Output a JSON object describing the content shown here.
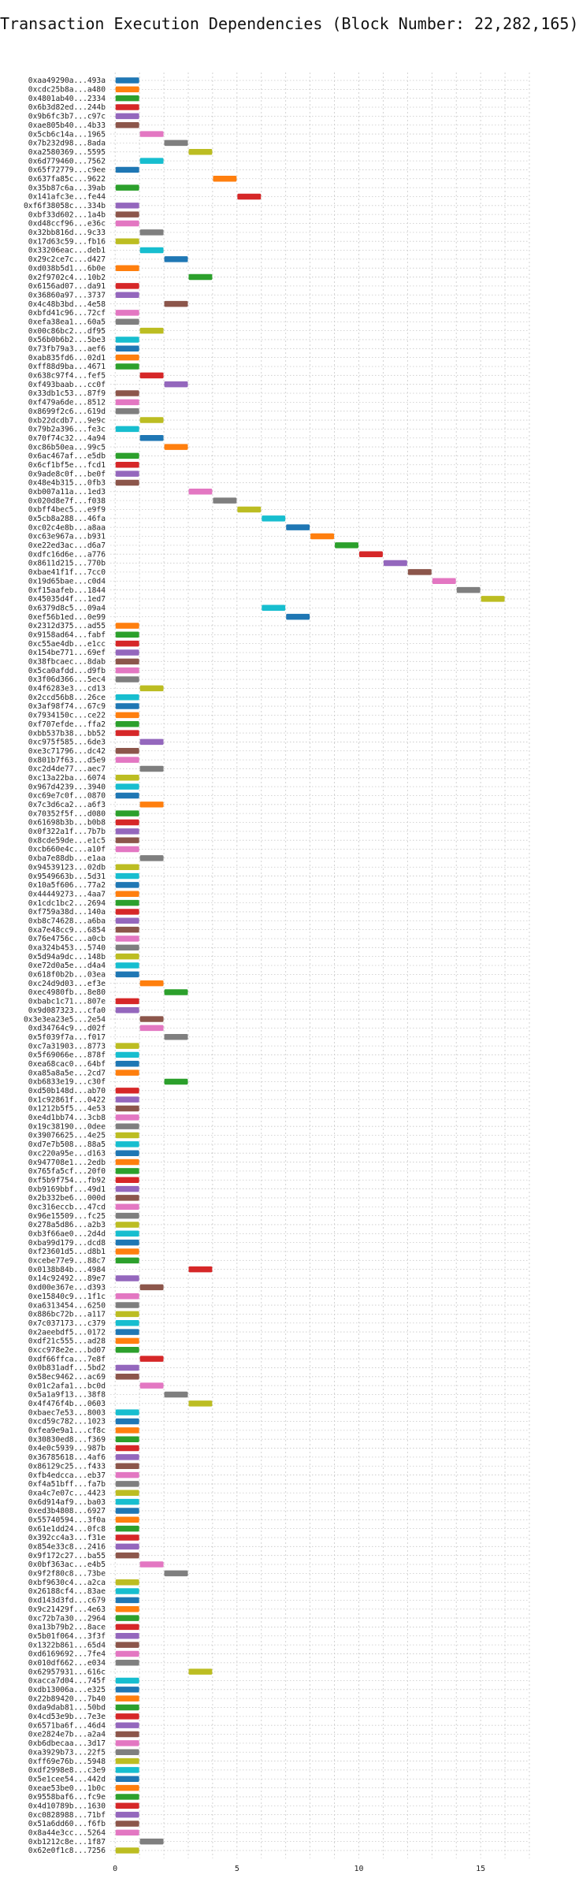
{
  "chart_data": {
    "type": "bar",
    "orientation": "horizontal-gantt",
    "title": "Transaction Execution Dependencies (Block Number: 22,282,165)",
    "xlabel": "",
    "ylabel": "",
    "xlim": [
      -0.2,
      17
    ],
    "xticks": [
      0,
      5,
      10,
      15
    ],
    "grid": true,
    "legend": "none",
    "palette": [
      "#1f77b4",
      "#ff7f0e",
      "#2ca02c",
      "#d62728",
      "#9467bd",
      "#8c564b",
      "#e377c2",
      "#7f7f7f",
      "#bcbd22",
      "#17becf"
    ],
    "transactions": [
      {
        "hash": "0xaa49290a...493a",
        "start": 0
      },
      {
        "hash": "0xcdc25b8a...a480",
        "start": 0
      },
      {
        "hash": "0x4801ab40...2334",
        "start": 0
      },
      {
        "hash": "0x6b3d82ed...244b",
        "start": 0
      },
      {
        "hash": "0x9b6fc3b7...c97c",
        "start": 0
      },
      {
        "hash": "0xae805b40...4b33",
        "start": 0
      },
      {
        "hash": "0x5cb6c14a...1965",
        "start": 1
      },
      {
        "hash": "0x7b232d98...8ada",
        "start": 2
      },
      {
        "hash": "0xa2580369...5595",
        "start": 3
      },
      {
        "hash": "0x6d779460...7562",
        "start": 1
      },
      {
        "hash": "0x65f72779...c9ee",
        "start": 0
      },
      {
        "hash": "0x637fa85c...9622",
        "start": 4
      },
      {
        "hash": "0x35b87c6a...39ab",
        "start": 0
      },
      {
        "hash": "0x141afc3e...fe44",
        "start": 5
      },
      {
        "hash": "0xf6f38058c...334b",
        "start": 0
      },
      {
        "hash": "0xbf33d602...1a4b",
        "start": 0
      },
      {
        "hash": "0xd48ccf96...e36c",
        "start": 0
      },
      {
        "hash": "0x32bb816d...9c33",
        "start": 1
      },
      {
        "hash": "0x17d63c59...fb16",
        "start": 0
      },
      {
        "hash": "0x33206eac...deb1",
        "start": 1
      },
      {
        "hash": "0x29c2ce7c...d427",
        "start": 2
      },
      {
        "hash": "0xd038b5d1...6b0e",
        "start": 0
      },
      {
        "hash": "0x2f9702c4...10b2",
        "start": 3
      },
      {
        "hash": "0x6156ad07...da91",
        "start": 0
      },
      {
        "hash": "0x36860a97...3737",
        "start": 0
      },
      {
        "hash": "0x4c48b3bd...4e58",
        "start": 2
      },
      {
        "hash": "0xbfd41c96...72cf",
        "start": 0
      },
      {
        "hash": "0xefa38ea1...60a5",
        "start": 0
      },
      {
        "hash": "0x00c86bc2...df95",
        "start": 1
      },
      {
        "hash": "0x56b0b6b2...5be3",
        "start": 0
      },
      {
        "hash": "0x73fb79a3...aef6",
        "start": 0
      },
      {
        "hash": "0xab835fd6...02d1",
        "start": 0
      },
      {
        "hash": "0xff88d9ba...4671",
        "start": 0
      },
      {
        "hash": "0x638c97f4...fef5",
        "start": 1
      },
      {
        "hash": "0xf493baab...cc0f",
        "start": 2
      },
      {
        "hash": "0x33db1c53...87f9",
        "start": 0
      },
      {
        "hash": "0xf479a6de...8512",
        "start": 0
      },
      {
        "hash": "0x8699f2c6...619d",
        "start": 0
      },
      {
        "hash": "0xb22dcdb7...9e9c",
        "start": 1
      },
      {
        "hash": "0x79b2a396...fe3c",
        "start": 0
      },
      {
        "hash": "0x70f74c32...4a94",
        "start": 1
      },
      {
        "hash": "0xc86b50ea...99c5",
        "start": 2
      },
      {
        "hash": "0x6ac467af...e5db",
        "start": 0
      },
      {
        "hash": "0x6cf1bf5e...fcd1",
        "start": 0
      },
      {
        "hash": "0x9ade8c0f...be0f",
        "start": 0
      },
      {
        "hash": "0x48e4b315...0fb3",
        "start": 0
      },
      {
        "hash": "0xb007a11a...1ed3",
        "start": 3
      },
      {
        "hash": "0x020d8e7f...f038",
        "start": 4
      },
      {
        "hash": "0xbff4bec5...e9f9",
        "start": 5
      },
      {
        "hash": "0x5cb8a288...46fa",
        "start": 6
      },
      {
        "hash": "0xc02c4e8b...a8aa",
        "start": 7
      },
      {
        "hash": "0xc63e967a...b931",
        "start": 8
      },
      {
        "hash": "0xe22ed3ac...d6a7",
        "start": 9
      },
      {
        "hash": "0xdfc16d6e...a776",
        "start": 10
      },
      {
        "hash": "0x8611d215...770b",
        "start": 11
      },
      {
        "hash": "0xbae41f1f...7cc0",
        "start": 12
      },
      {
        "hash": "0x19d65bae...c0d4",
        "start": 13
      },
      {
        "hash": "0xf15aafeb...1844",
        "start": 14
      },
      {
        "hash": "0x45035d4f...1ed7",
        "start": 15
      },
      {
        "hash": "0x6379d8c5...09a4",
        "start": 6
      },
      {
        "hash": "0xef56b1ed...0e99",
        "start": 7
      },
      {
        "hash": "0x2312d375...ad55",
        "start": 0
      },
      {
        "hash": "0x9158ad64...fabf",
        "start": 0
      },
      {
        "hash": "0xc55ae4db...e1cc",
        "start": 0
      },
      {
        "hash": "0x154be771...69ef",
        "start": 0
      },
      {
        "hash": "0x38fbcaec...8dab",
        "start": 0
      },
      {
        "hash": "0x5ca0afdd...d9fb",
        "start": 0
      },
      {
        "hash": "0x3f06d366...5ec4",
        "start": 0
      },
      {
        "hash": "0x4f6283e3...cd13",
        "start": 1
      },
      {
        "hash": "0x2ccd56b8...26ce",
        "start": 0
      },
      {
        "hash": "0x3af98f74...67c9",
        "start": 0
      },
      {
        "hash": "0x7934150c...ce22",
        "start": 0
      },
      {
        "hash": "0xf707efde...ffa2",
        "start": 0
      },
      {
        "hash": "0xbb537b38...bb52",
        "start": 0
      },
      {
        "hash": "0xc975f585...6de3",
        "start": 1
      },
      {
        "hash": "0xe3c71796...dc42",
        "start": 0
      },
      {
        "hash": "0x801b7f63...d5e9",
        "start": 0
      },
      {
        "hash": "0xc2d4de77...aec7",
        "start": 1
      },
      {
        "hash": "0xc13a22ba...6074",
        "start": 0
      },
      {
        "hash": "0x967d4239...3940",
        "start": 0
      },
      {
        "hash": "0xc69e7c0f...0870",
        "start": 0
      },
      {
        "hash": "0x7c3d6ca2...a6f3",
        "start": 1
      },
      {
        "hash": "0x70352f5f...d080",
        "start": 0
      },
      {
        "hash": "0x61698b3b...b0b8",
        "start": 0
      },
      {
        "hash": "0x0f322a1f...7b7b",
        "start": 0
      },
      {
        "hash": "0x8cde59de...e1c5",
        "start": 0
      },
      {
        "hash": "0xcb660e4c...a10f",
        "start": 0
      },
      {
        "hash": "0xba7e88db...e1aa",
        "start": 1
      },
      {
        "hash": "0x94539123...02db",
        "start": 0
      },
      {
        "hash": "0x9549663b...5d31",
        "start": 0
      },
      {
        "hash": "0x10a5f606...77a2",
        "start": 0
      },
      {
        "hash": "0x44449273...4aa7",
        "start": 0
      },
      {
        "hash": "0x1cdc1bc2...2694",
        "start": 0
      },
      {
        "hash": "0xf759a38d...140a",
        "start": 0
      },
      {
        "hash": "0xb8c74628...a6ba",
        "start": 0
      },
      {
        "hash": "0xa7e48cc9...6854",
        "start": 0
      },
      {
        "hash": "0x76e4756c...a0cb",
        "start": 0
      },
      {
        "hash": "0xa324b453...5740",
        "start": 0
      },
      {
        "hash": "0x5d94a9dc...148b",
        "start": 0
      },
      {
        "hash": "0xe72d0a5e...d4a4",
        "start": 0
      },
      {
        "hash": "0x618f0b2b...03ea",
        "start": 0
      },
      {
        "hash": "0xc24d9d03...ef3e",
        "start": 1
      },
      {
        "hash": "0xec4980fb...8e80",
        "start": 2
      },
      {
        "hash": "0xbabc1c71...807e",
        "start": 0
      },
      {
        "hash": "0x9d087323...cfa0",
        "start": 0
      },
      {
        "hash": "0x3e3ea23e5...2e54",
        "start": 1
      },
      {
        "hash": "0xd34764c9...d02f",
        "start": 1
      },
      {
        "hash": "0x5f039f7a...f017",
        "start": 2
      },
      {
        "hash": "0xc7a31903...8773",
        "start": 0
      },
      {
        "hash": "0x5f69066e...878f",
        "start": 0
      },
      {
        "hash": "0xea68cac0...64bf",
        "start": 0
      },
      {
        "hash": "0xa85a8a5e...2cd7",
        "start": 0
      },
      {
        "hash": "0xb6833e19...c30f",
        "start": 2
      },
      {
        "hash": "0xd50b148d...ab70",
        "start": 0
      },
      {
        "hash": "0x1c92861f...0422",
        "start": 0
      },
      {
        "hash": "0x1212b5f5...4e53",
        "start": 0
      },
      {
        "hash": "0xe4d1bb74...3cb8",
        "start": 0
      },
      {
        "hash": "0x19c38190...0dee",
        "start": 0
      },
      {
        "hash": "0x39076625...4e25",
        "start": 0
      },
      {
        "hash": "0xd7e7b508...88a5",
        "start": 0
      },
      {
        "hash": "0xc220a95e...d163",
        "start": 0
      },
      {
        "hash": "0x947708e1...2edb",
        "start": 0
      },
      {
        "hash": "0x765fa5cf...20f0",
        "start": 0
      },
      {
        "hash": "0xf5b9f754...fb92",
        "start": 0
      },
      {
        "hash": "0xb9169bbf...49d1",
        "start": 0
      },
      {
        "hash": "0x2b332be6...000d",
        "start": 0
      },
      {
        "hash": "0xc316eccb...47cd",
        "start": 0
      },
      {
        "hash": "0x96e15509...fc25",
        "start": 0
      },
      {
        "hash": "0x278a5d86...a2b3",
        "start": 0
      },
      {
        "hash": "0xb3f66ae0...2d4d",
        "start": 0
      },
      {
        "hash": "0xba99d179...dcd8",
        "start": 0
      },
      {
        "hash": "0xf23601d5...d8b1",
        "start": 0
      },
      {
        "hash": "0xcebe77e9...88c7",
        "start": 0
      },
      {
        "hash": "0x0138b84b...4984",
        "start": 3
      },
      {
        "hash": "0x14c92492...89e7",
        "start": 0
      },
      {
        "hash": "0xd00e367e...d393",
        "start": 1
      },
      {
        "hash": "0xe15840c9...1f1c",
        "start": 0
      },
      {
        "hash": "0xa6313454...6250",
        "start": 0
      },
      {
        "hash": "0x886bc72b...a117",
        "start": 0
      },
      {
        "hash": "0x7c037173...c379",
        "start": 0
      },
      {
        "hash": "0x2aeebdf5...0172",
        "start": 0
      },
      {
        "hash": "0xdf21c555...ad28",
        "start": 0
      },
      {
        "hash": "0xcc978e2e...bd07",
        "start": 0
      },
      {
        "hash": "0xdf66ffca...7e8f",
        "start": 1
      },
      {
        "hash": "0x0b831adf...5bd2",
        "start": 0
      },
      {
        "hash": "0x58ec9462...ac69",
        "start": 0
      },
      {
        "hash": "0x01c2afa1...bc0d",
        "start": 1
      },
      {
        "hash": "0x5a1a9f13...38f8",
        "start": 2
      },
      {
        "hash": "0x4f476f4b...0603",
        "start": 3
      },
      {
        "hash": "0xbaec7e53...8003",
        "start": 0
      },
      {
        "hash": "0xcd59c782...1023",
        "start": 0
      },
      {
        "hash": "0xfea9e9a1...cf8c",
        "start": 0
      },
      {
        "hash": "0x30830ed8...f369",
        "start": 0
      },
      {
        "hash": "0x4e0c5939...987b",
        "start": 0
      },
      {
        "hash": "0x36785618...4af6",
        "start": 0
      },
      {
        "hash": "0x86129c25...f433",
        "start": 0
      },
      {
        "hash": "0xfb4edcca...eb37",
        "start": 0
      },
      {
        "hash": "0xf4a51bff...fa7b",
        "start": 0
      },
      {
        "hash": "0xa4c7e07c...4423",
        "start": 0
      },
      {
        "hash": "0x6d914af9...ba03",
        "start": 0
      },
      {
        "hash": "0xed3b4808...6927",
        "start": 0
      },
      {
        "hash": "0x55740594...3f0a",
        "start": 0
      },
      {
        "hash": "0x61e1dd24...0fc8",
        "start": 0
      },
      {
        "hash": "0x392cc4a3...f31e",
        "start": 0
      },
      {
        "hash": "0x854e33c8...2416",
        "start": 0
      },
      {
        "hash": "0x9f172c27...ba55",
        "start": 0
      },
      {
        "hash": "0x0bf363ac...e4b5",
        "start": 1
      },
      {
        "hash": "0x9f2f80c8...73be",
        "start": 2
      },
      {
        "hash": "0xbf9630c4...a2ca",
        "start": 0
      },
      {
        "hash": "0x26188cf4...83ae",
        "start": 0
      },
      {
        "hash": "0xd143d3fd...c679",
        "start": 0
      },
      {
        "hash": "0x9c21429f...4e63",
        "start": 0
      },
      {
        "hash": "0xc72b7a30...2964",
        "start": 0
      },
      {
        "hash": "0xa13b79b2...8ace",
        "start": 0
      },
      {
        "hash": "0x5b01f064...3f3f",
        "start": 0
      },
      {
        "hash": "0x1322b861...65d4",
        "start": 0
      },
      {
        "hash": "0xd6169692...7fe4",
        "start": 0
      },
      {
        "hash": "0x010df662...e034",
        "start": 0
      },
      {
        "hash": "0x62957931...616c",
        "start": 3
      },
      {
        "hash": "0xacca7d04...745f",
        "start": 0
      },
      {
        "hash": "0xdb13006a...e325",
        "start": 0
      },
      {
        "hash": "0x22b89420...7b40",
        "start": 0
      },
      {
        "hash": "0xda9dab81...50bd",
        "start": 0
      },
      {
        "hash": "0x4cd53e9b...7e3e",
        "start": 0
      },
      {
        "hash": "0x6571ba6f...46d4",
        "start": 0
      },
      {
        "hash": "0xe2824e7b...a2a4",
        "start": 0
      },
      {
        "hash": "0xb6dbecaa...3d17",
        "start": 0
      },
      {
        "hash": "0xa3929b73...22f5",
        "start": 0
      },
      {
        "hash": "0xff69e76b...5948",
        "start": 0
      },
      {
        "hash": "0xdf2998e8...c3e9",
        "start": 0
      },
      {
        "hash": "0x5e1cee54...442d",
        "start": 0
      },
      {
        "hash": "0xeae53be0...1b0c",
        "start": 0
      },
      {
        "hash": "0x9558baf6...fc9e",
        "start": 0
      },
      {
        "hash": "0x4d10789b...1630",
        "start": 0
      },
      {
        "hash": "0xc0828988...71bf",
        "start": 0
      },
      {
        "hash": "0x51a6dd60...f6fb",
        "start": 0
      },
      {
        "hash": "0x8a44e3cc...5264",
        "start": 0
      },
      {
        "hash": "0xb1212c8e...1f87",
        "start": 1
      },
      {
        "hash": "0x62e0f1c8...7256",
        "start": 0
      }
    ]
  }
}
